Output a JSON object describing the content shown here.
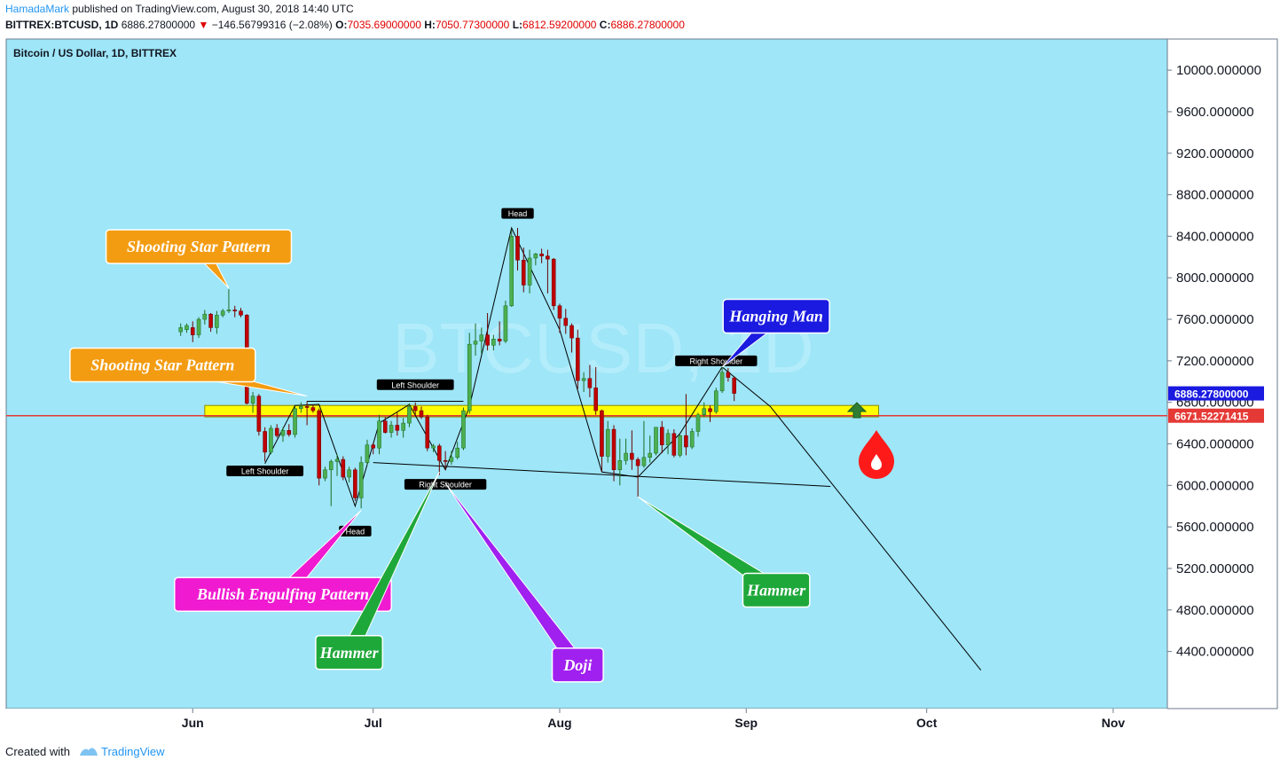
{
  "header": {
    "author": "HamadaMark",
    "published_text": "published on TradingView.com, August 30, 2018 14:40 UTC",
    "symbol": "BITTREX:BTCUSD, 1D",
    "last_price": "6886.27800000",
    "change": "−146.56799316 (−2.08%)",
    "ohlc": {
      "o_label": "O:",
      "o": "7035.69000000",
      "h_label": "H:",
      "h": "7050.77300000",
      "l_label": "L:",
      "l": "6812.59200000",
      "c_label": "C:",
      "c": "6886.27800000"
    }
  },
  "chart_title": "Bitcoin / US Dollar, 1D, BITTREX",
  "watermark": "BTCUSD, 1D",
  "footer": {
    "created_with": "Created with",
    "brand": "TradingView"
  },
  "colors": {
    "background": "#9ee6f8",
    "bull_candle": "#4caf50",
    "bear_candle": "#c00000",
    "support_zone": "#ffff00",
    "horizontal_line": "#e53935",
    "orange_callout": "#f39c12",
    "blue_callout": "#1a1ae0",
    "green_callout": "#1fa83a",
    "magenta_callout": "#f01ad0",
    "purple_callout": "#a020f0"
  },
  "chart_data": {
    "type": "candlestick",
    "x_axis": {
      "type": "date",
      "range": [
        "2018-05-01",
        "2018-11-10"
      ],
      "tick_labels": [
        "Jun",
        "Jul",
        "Aug",
        "Sep",
        "Oct",
        "Nov"
      ],
      "tick_dates": [
        "2018-06-01",
        "2018-07-01",
        "2018-08-01",
        "2018-09-01",
        "2018-10-01",
        "2018-11-01"
      ]
    },
    "y_axis": {
      "range": [
        3850,
        10300
      ],
      "ticks": [
        10000,
        9600,
        9200,
        8800,
        8400,
        8000,
        7600,
        7200,
        6800,
        6400,
        6000,
        5600,
        5200,
        4800,
        4400
      ],
      "tick_labels": [
        "10000.000000",
        "9600.000000",
        "9200.000000",
        "8800.000000",
        "8400.000000",
        "8000.000000",
        "7600.000000",
        "7200.000000",
        "6800.000000",
        "6400.000000",
        "6000.000000",
        "5600.000000",
        "5200.000000",
        "4800.000000",
        "4400.000000"
      ],
      "price_labels": [
        {
          "value": 6886.278,
          "text": "6886.27800000",
          "color": "#1a1ae0"
        },
        {
          "value": 6671.52271415,
          "text": "6671.52271415",
          "color": "#e53935"
        }
      ]
    },
    "horizontal_line": 6671.52271415,
    "support_zone": {
      "from": "2018-06-03",
      "to": "2018-09-23",
      "low": 6660,
      "high": 6770
    },
    "candles": [
      {
        "d": "2018-05-30",
        "o": 7480,
        "h": 7560,
        "l": 7440,
        "c": 7520
      },
      {
        "d": "2018-05-31",
        "o": 7500,
        "h": 7560,
        "l": 7470,
        "c": 7540
      },
      {
        "d": "2018-06-01",
        "o": 7520,
        "h": 7580,
        "l": 7380,
        "c": 7450
      },
      {
        "d": "2018-06-02",
        "o": 7450,
        "h": 7620,
        "l": 7420,
        "c": 7600
      },
      {
        "d": "2018-06-03",
        "o": 7600,
        "h": 7690,
        "l": 7550,
        "c": 7650
      },
      {
        "d": "2018-06-04",
        "o": 7650,
        "h": 7660,
        "l": 7480,
        "c": 7520
      },
      {
        "d": "2018-06-05",
        "o": 7520,
        "h": 7680,
        "l": 7460,
        "c": 7640
      },
      {
        "d": "2018-06-06",
        "o": 7640,
        "h": 7700,
        "l": 7620,
        "c": 7680
      },
      {
        "d": "2018-06-07",
        "o": 7680,
        "h": 7890,
        "l": 7660,
        "c": 7690
      },
      {
        "d": "2018-06-08",
        "o": 7690,
        "h": 7730,
        "l": 7620,
        "c": 7680
      },
      {
        "d": "2018-06-09",
        "o": 7680,
        "h": 7710,
        "l": 7620,
        "c": 7640
      },
      {
        "d": "2018-06-10",
        "o": 7640,
        "h": 7650,
        "l": 6780,
        "c": 6790
      },
      {
        "d": "2018-06-11",
        "o": 6790,
        "h": 6900,
        "l": 6700,
        "c": 6860
      },
      {
        "d": "2018-06-12",
        "o": 6860,
        "h": 6880,
        "l": 6480,
        "c": 6520
      },
      {
        "d": "2018-06-13",
        "o": 6520,
        "h": 6560,
        "l": 6230,
        "c": 6320
      },
      {
        "d": "2018-06-14",
        "o": 6320,
        "h": 6580,
        "l": 6300,
        "c": 6550
      },
      {
        "d": "2018-06-15",
        "o": 6550,
        "h": 6590,
        "l": 6460,
        "c": 6480
      },
      {
        "d": "2018-06-16",
        "o": 6480,
        "h": 6560,
        "l": 6420,
        "c": 6530
      },
      {
        "d": "2018-06-17",
        "o": 6530,
        "h": 6590,
        "l": 6470,
        "c": 6490
      },
      {
        "d": "2018-06-18",
        "o": 6490,
        "h": 6760,
        "l": 6460,
        "c": 6740
      },
      {
        "d": "2018-06-19",
        "o": 6740,
        "h": 6800,
        "l": 6700,
        "c": 6760
      },
      {
        "d": "2018-06-20",
        "o": 6760,
        "h": 6810,
        "l": 6580,
        "c": 6750
      },
      {
        "d": "2018-06-21",
        "o": 6750,
        "h": 6780,
        "l": 6700,
        "c": 6720
      },
      {
        "d": "2018-06-22",
        "o": 6720,
        "h": 6740,
        "l": 6000,
        "c": 6070
      },
      {
        "d": "2018-06-23",
        "o": 6070,
        "h": 6180,
        "l": 6040,
        "c": 6150
      },
      {
        "d": "2018-06-24",
        "o": 6150,
        "h": 6250,
        "l": 5800,
        "c": 6230
      },
      {
        "d": "2018-06-25",
        "o": 6230,
        "h": 6300,
        "l": 6090,
        "c": 6250
      },
      {
        "d": "2018-06-26",
        "o": 6250,
        "h": 6280,
        "l": 6050,
        "c": 6080
      },
      {
        "d": "2018-06-27",
        "o": 6080,
        "h": 6180,
        "l": 6030,
        "c": 6150
      },
      {
        "d": "2018-06-28",
        "o": 6150,
        "h": 6170,
        "l": 5850,
        "c": 5880
      },
      {
        "d": "2018-06-29",
        "o": 5880,
        "h": 6280,
        "l": 5780,
        "c": 6220
      },
      {
        "d": "2018-06-30",
        "o": 6220,
        "h": 6440,
        "l": 6200,
        "c": 6390
      },
      {
        "d": "2018-07-01",
        "o": 6390,
        "h": 6410,
        "l": 6300,
        "c": 6360
      },
      {
        "d": "2018-07-02",
        "o": 6360,
        "h": 6680,
        "l": 6300,
        "c": 6620
      },
      {
        "d": "2018-07-03",
        "o": 6620,
        "h": 6660,
        "l": 6500,
        "c": 6510
      },
      {
        "d": "2018-07-04",
        "o": 6510,
        "h": 6620,
        "l": 6460,
        "c": 6580
      },
      {
        "d": "2018-07-05",
        "o": 6580,
        "h": 6700,
        "l": 6480,
        "c": 6530
      },
      {
        "d": "2018-07-06",
        "o": 6530,
        "h": 6650,
        "l": 6460,
        "c": 6600
      },
      {
        "d": "2018-07-07",
        "o": 6600,
        "h": 6790,
        "l": 6560,
        "c": 6760
      },
      {
        "d": "2018-07-08",
        "o": 6760,
        "h": 6800,
        "l": 6680,
        "c": 6720
      },
      {
        "d": "2018-07-09",
        "o": 6720,
        "h": 6760,
        "l": 6640,
        "c": 6660
      },
      {
        "d": "2018-07-10",
        "o": 6660,
        "h": 6680,
        "l": 6330,
        "c": 6360
      },
      {
        "d": "2018-07-11",
        "o": 6360,
        "h": 6400,
        "l": 6320,
        "c": 6380
      },
      {
        "d": "2018-07-12",
        "o": 6380,
        "h": 6400,
        "l": 6100,
        "c": 6240
      },
      {
        "d": "2018-07-13",
        "o": 6240,
        "h": 6330,
        "l": 6150,
        "c": 6230
      },
      {
        "d": "2018-07-14",
        "o": 6230,
        "h": 6330,
        "l": 6200,
        "c": 6270
      },
      {
        "d": "2018-07-15",
        "o": 6270,
        "h": 6420,
        "l": 6250,
        "c": 6360
      },
      {
        "d": "2018-07-16",
        "o": 6360,
        "h": 6750,
        "l": 6340,
        "c": 6720
      },
      {
        "d": "2018-07-17",
        "o": 6720,
        "h": 7470,
        "l": 6690,
        "c": 7360
      },
      {
        "d": "2018-07-18",
        "o": 7360,
        "h": 7560,
        "l": 7250,
        "c": 7390
      },
      {
        "d": "2018-07-19",
        "o": 7390,
        "h": 7520,
        "l": 7270,
        "c": 7450
      },
      {
        "d": "2018-07-20",
        "o": 7450,
        "h": 7660,
        "l": 7300,
        "c": 7350
      },
      {
        "d": "2018-07-21",
        "o": 7350,
        "h": 7450,
        "l": 7300,
        "c": 7410
      },
      {
        "d": "2018-07-22",
        "o": 7410,
        "h": 7580,
        "l": 7350,
        "c": 7390
      },
      {
        "d": "2018-07-23",
        "o": 7390,
        "h": 7780,
        "l": 7370,
        "c": 7730
      },
      {
        "d": "2018-07-24",
        "o": 7730,
        "h": 8460,
        "l": 7720,
        "c": 8400
      },
      {
        "d": "2018-07-25",
        "o": 8400,
        "h": 8480,
        "l": 8070,
        "c": 8170
      },
      {
        "d": "2018-07-26",
        "o": 8170,
        "h": 8290,
        "l": 7860,
        "c": 7930
      },
      {
        "d": "2018-07-27",
        "o": 7930,
        "h": 8270,
        "l": 7850,
        "c": 8190
      },
      {
        "d": "2018-07-28",
        "o": 8190,
        "h": 8240,
        "l": 8120,
        "c": 8230
      },
      {
        "d": "2018-07-29",
        "o": 8230,
        "h": 8280,
        "l": 8140,
        "c": 8210
      },
      {
        "d": "2018-07-30",
        "o": 8210,
        "h": 8270,
        "l": 7850,
        "c": 8180
      },
      {
        "d": "2018-07-31",
        "o": 8180,
        "h": 8190,
        "l": 7690,
        "c": 7730
      },
      {
        "d": "2018-08-01",
        "o": 7730,
        "h": 7750,
        "l": 7470,
        "c": 7610
      },
      {
        "d": "2018-08-02",
        "o": 7610,
        "h": 7700,
        "l": 7460,
        "c": 7540
      },
      {
        "d": "2018-08-03",
        "o": 7540,
        "h": 7560,
        "l": 7280,
        "c": 7420
      },
      {
        "d": "2018-08-04",
        "o": 7420,
        "h": 7500,
        "l": 6930,
        "c": 7010
      },
      {
        "d": "2018-08-05",
        "o": 7010,
        "h": 7090,
        "l": 6900,
        "c": 7030
      },
      {
        "d": "2018-08-06",
        "o": 7030,
        "h": 7160,
        "l": 6850,
        "c": 6940
      },
      {
        "d": "2018-08-07",
        "o": 6940,
        "h": 7140,
        "l": 6680,
        "c": 6720
      },
      {
        "d": "2018-08-08",
        "o": 6720,
        "h": 6730,
        "l": 6130,
        "c": 6280
      },
      {
        "d": "2018-08-09",
        "o": 6280,
        "h": 6620,
        "l": 6220,
        "c": 6540
      },
      {
        "d": "2018-08-10",
        "o": 6540,
        "h": 6580,
        "l": 6040,
        "c": 6150
      },
      {
        "d": "2018-08-11",
        "o": 6150,
        "h": 6450,
        "l": 6000,
        "c": 6240
      },
      {
        "d": "2018-08-12",
        "o": 6240,
        "h": 6450,
        "l": 6200,
        "c": 6310
      },
      {
        "d": "2018-08-13",
        "o": 6310,
        "h": 6530,
        "l": 6150,
        "c": 6250
      },
      {
        "d": "2018-08-14",
        "o": 6250,
        "h": 6270,
        "l": 5890,
        "c": 6190
      },
      {
        "d": "2018-08-15",
        "o": 6190,
        "h": 6620,
        "l": 6170,
        "c": 6270
      },
      {
        "d": "2018-08-16",
        "o": 6270,
        "h": 6480,
        "l": 6220,
        "c": 6310
      },
      {
        "d": "2018-08-17",
        "o": 6310,
        "h": 6560,
        "l": 6290,
        "c": 6560
      },
      {
        "d": "2018-08-18",
        "o": 6560,
        "h": 6620,
        "l": 6310,
        "c": 6390
      },
      {
        "d": "2018-08-19",
        "o": 6390,
        "h": 6540,
        "l": 6300,
        "c": 6500
      },
      {
        "d": "2018-08-20",
        "o": 6500,
        "h": 6540,
        "l": 6270,
        "c": 6290
      },
      {
        "d": "2018-08-21",
        "o": 6290,
        "h": 6490,
        "l": 6270,
        "c": 6480
      },
      {
        "d": "2018-08-22",
        "o": 6480,
        "h": 6880,
        "l": 6290,
        "c": 6370
      },
      {
        "d": "2018-08-23",
        "o": 6370,
        "h": 6550,
        "l": 6350,
        "c": 6520
      },
      {
        "d": "2018-08-24",
        "o": 6520,
        "h": 6700,
        "l": 6470,
        "c": 6680
      },
      {
        "d": "2018-08-25",
        "o": 6680,
        "h": 6800,
        "l": 6660,
        "c": 6740
      },
      {
        "d": "2018-08-26",
        "o": 6740,
        "h": 6770,
        "l": 6610,
        "c": 6710
      },
      {
        "d": "2018-08-27",
        "o": 6710,
        "h": 6940,
        "l": 6690,
        "c": 6910
      },
      {
        "d": "2018-08-28",
        "o": 6910,
        "h": 7140,
        "l": 6890,
        "c": 7090
      },
      {
        "d": "2018-08-29",
        "o": 7090,
        "h": 7130,
        "l": 7000,
        "c": 7040
      },
      {
        "d": "2018-08-30",
        "o": 7035.69,
        "h": 7050.773,
        "l": 6812.592,
        "c": 6886.278
      }
    ],
    "annotations": {
      "labels": [
        {
          "text": "Head",
          "date": "2018-06-28",
          "price": 5560
        },
        {
          "text": "Left Shoulder",
          "date": "2018-06-13",
          "price": 6140
        },
        {
          "text": "Left Shoulder",
          "date": "2018-07-08",
          "price": 6970
        },
        {
          "text": "Right Shoulder",
          "date": "2018-07-13",
          "price": 6010
        },
        {
          "text": "Head",
          "date": "2018-07-25",
          "price": 8620
        },
        {
          "text": "Right Shoulder",
          "date": "2018-08-27",
          "price": 7200
        }
      ],
      "callouts": [
        {
          "text": "Shooting Star Pattern",
          "color": "orange_callout",
          "date": "2018-06-02",
          "price": 8300,
          "target_date": "2018-06-07",
          "target_price": 7900
        },
        {
          "text": "Shooting Star Pattern",
          "color": "orange_callout",
          "date": "2018-05-27",
          "price": 7160,
          "target_date": "2018-06-20",
          "target_price": 6860
        },
        {
          "text": "Bullish Engulfing Pattern",
          "color": "magenta_callout",
          "date": "2018-06-16",
          "price": 4950,
          "target_date": "2018-06-29",
          "target_price": 5760
        },
        {
          "text": "Hammer",
          "color": "green_callout",
          "date": "2018-06-27",
          "price": 4390,
          "target_date": "2018-07-12",
          "target_price": 6130
        },
        {
          "text": "Doji",
          "color": "purple_callout",
          "date": "2018-08-04",
          "price": 4270,
          "target_date": "2018-07-13",
          "target_price": 6020
        },
        {
          "text": "Hammer",
          "color": "green_callout",
          "date": "2018-09-06",
          "price": 4990,
          "target_date": "2018-08-14",
          "target_price": 5890
        },
        {
          "text": "Hanging Man",
          "color": "blue_callout",
          "date": "2018-09-06",
          "price": 7630,
          "target_date": "2018-08-28",
          "target_price": 7140
        }
      ]
    }
  }
}
